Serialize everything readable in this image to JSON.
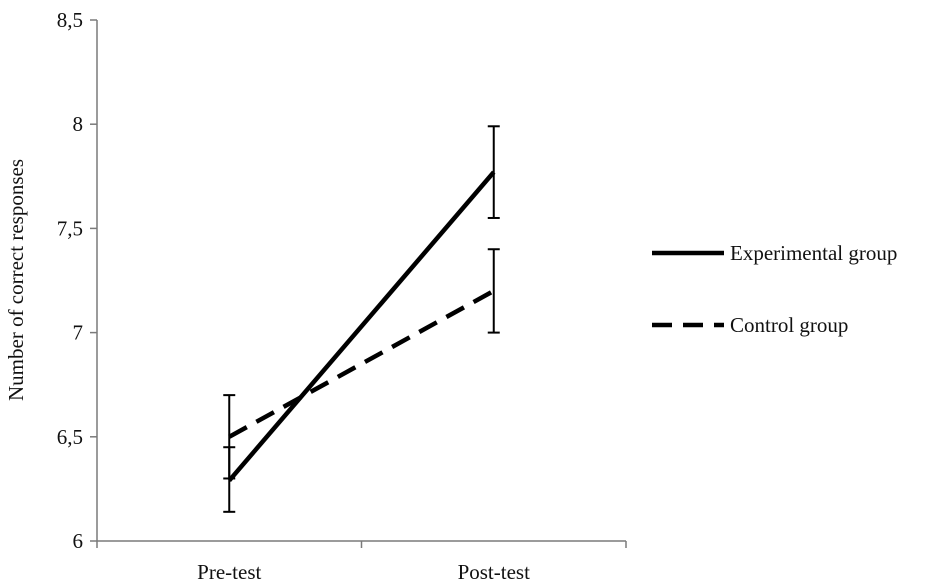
{
  "chart_data": {
    "type": "line",
    "title": "",
    "xlabel": "",
    "ylabel": "Number of correct responses",
    "categories": [
      "Pre-test",
      "Post-test"
    ],
    "ylim": [
      6,
      8.5
    ],
    "yticks": [
      {
        "value": 6,
        "label": "6"
      },
      {
        "value": 6.5,
        "label": "6,5"
      },
      {
        "value": 7,
        "label": "7"
      },
      {
        "value": 7.5,
        "label": "7,5"
      },
      {
        "value": 8,
        "label": "8"
      },
      {
        "value": 8.5,
        "label": "8,5"
      }
    ],
    "grid": false,
    "legend_position": "right",
    "series": [
      {
        "name": "Experimental group",
        "style": "solid",
        "color": "#000000",
        "values": [
          6.29,
          7.77
        ],
        "error_low": [
          6.14,
          7.55
        ],
        "error_high": [
          6.45,
          7.99
        ]
      },
      {
        "name": "Control group",
        "style": "dashed",
        "color": "#000000",
        "values": [
          6.5,
          7.2
        ],
        "error_low": [
          6.3,
          7.0
        ],
        "error_high": [
          6.7,
          7.4
        ]
      }
    ]
  }
}
